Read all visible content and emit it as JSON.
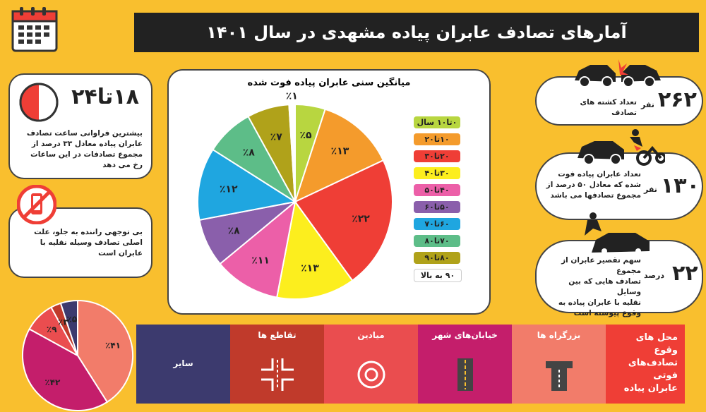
{
  "title": "آمارهای تصادف عابران پیاده مشهدی در سال ۱۴۰۱",
  "pie_title": "میانگین سنی عابران پیاده فوت شده",
  "chart_data": [
    {
      "type": "pie",
      "title": "میانگین سنی عابران پیاده فوت شده",
      "labels": [
        "۰تا۱۰ سال",
        "۱۰تا۲۰",
        "۲۰تا۳۰",
        "۳۰تا۴۰",
        "۴۰تا۵۰",
        "۵۰تا۶۰",
        "۶۰تا۷۰",
        "۷۰تا۸۰",
        "۸۰تا۹۰",
        "۹۰ به بالا"
      ],
      "values": [
        5,
        13,
        22,
        13,
        11,
        8,
        12,
        8,
        7,
        1
      ],
      "value_labels": [
        "٪۵",
        "٪۱۳",
        "٪۲۲",
        "٪۱۳",
        "٪۱۱",
        "٪۸",
        "٪۱۲",
        "٪۸",
        "٪۷",
        "٪۱"
      ],
      "colors": [
        "#b8d640",
        "#f49b2c",
        "#ef3e36",
        "#fcee1e",
        "#ec5fa8",
        "#8a5fab",
        "#1fa6e0",
        "#5dbd88",
        "#b0a21a",
        "#ffffff"
      ],
      "legend": "right"
    },
    {
      "type": "pie",
      "values": [
        41,
        42,
        9,
        3,
        5
      ],
      "value_labels": [
        "٪۴۱",
        "٪۴۲",
        "٪۹",
        "٪۳",
        "٪۵"
      ],
      "colors": [
        "#f27c6a",
        "#c41e6b",
        "#ea4d4f",
        "#c03a2b",
        "#3c3a6e"
      ]
    }
  ],
  "hour": {
    "headline": "۱۸تا۲۴",
    "text_lines": [
      "بیشترین فراوانی ساعت تصادف",
      "عابران پیاده معادل ۳۳ درصد از",
      "مجموع تصادفات در این ساعات",
      "رخ می دهد"
    ]
  },
  "phone": {
    "text_lines": [
      "بی توجهی راننده به جلو، علت",
      "اصلی تصادف وسیله نقلیه با",
      "عابران است"
    ]
  },
  "stats": [
    {
      "num": "۲۶۲",
      "unit": "نفر",
      "text_lines": [
        "تعداد کشته های تصادف"
      ]
    },
    {
      "num": "۱۳۰",
      "unit": "نفر",
      "text_lines": [
        "تعداد عابران پیاده فوت",
        "شده که معادل ۵۰ درصد از",
        "مجموع تصادفها می باشد"
      ]
    },
    {
      "num": "۲۲",
      "unit": "درصد",
      "text_lines": [
        "سهم تقصیر عابران از مجموع",
        "تصادف هایی که بین وسایل",
        "نقلیه با عابران پیاده به",
        "وقوع پیوسته است"
      ]
    }
  ],
  "locations": {
    "heading_lines": [
      "محل های",
      "وقوع",
      "تصادف‌های",
      "فوتی",
      "عابران پیاده"
    ],
    "items": [
      {
        "label": "بزرگراه ها",
        "color": "#f27c6a"
      },
      {
        "label": "خیابان‌های شهر",
        "color": "#c41e6b"
      },
      {
        "label": "میادین",
        "color": "#ea4d4f"
      },
      {
        "label": "تقاطع ها",
        "color": "#c03a2b"
      },
      {
        "label": "سایر",
        "color": "#3c3a6e"
      }
    ],
    "heading_color": "#ef3e36"
  }
}
